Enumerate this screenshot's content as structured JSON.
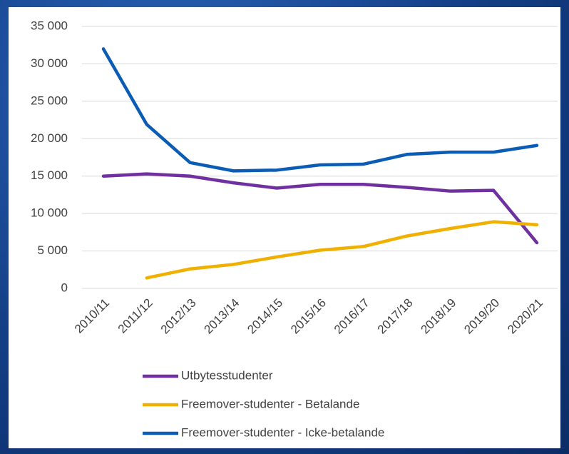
{
  "chart_data": {
    "type": "line",
    "categories": [
      "2010/11",
      "2011/12",
      "2012/13",
      "2013/14",
      "2014/15",
      "2015/16",
      "2016/17",
      "2017/18",
      "2018/19",
      "2019/20",
      "2020/21"
    ],
    "series": [
      {
        "name": "Utbytesstudenter",
        "color": "#7030a0",
        "values": [
          15000,
          15300,
          15000,
          14100,
          13400,
          13900,
          13900,
          13500,
          13000,
          13100,
          6100
        ]
      },
      {
        "name": "Freemover-studenter - Betalande",
        "color": "#f0b000",
        "values": [
          null,
          1400,
          2600,
          3200,
          4200,
          5100,
          5600,
          7000,
          8000,
          8900,
          8500
        ]
      },
      {
        "name": "Freemover-studenter - Icke-betalande",
        "color": "#0a5cb4",
        "values": [
          32000,
          21900,
          16800,
          15700,
          15800,
          16500,
          16600,
          17900,
          18200,
          18200,
          19100
        ]
      }
    ],
    "ylim": [
      0,
      35000
    ],
    "yticks": [
      0,
      {
        "value": 5000,
        "label": "5 000"
      },
      {
        "value": 10000,
        "label": "10 000"
      },
      {
        "value": 15000,
        "label": "15 000"
      },
      {
        "value": 20000,
        "label": "20 000"
      },
      {
        "value": 25000,
        "label": "25 000"
      },
      {
        "value": 30000,
        "label": "30 000"
      },
      {
        "value": 35000,
        "label": "35 000"
      }
    ],
    "grid": true,
    "legend": "bottom"
  }
}
